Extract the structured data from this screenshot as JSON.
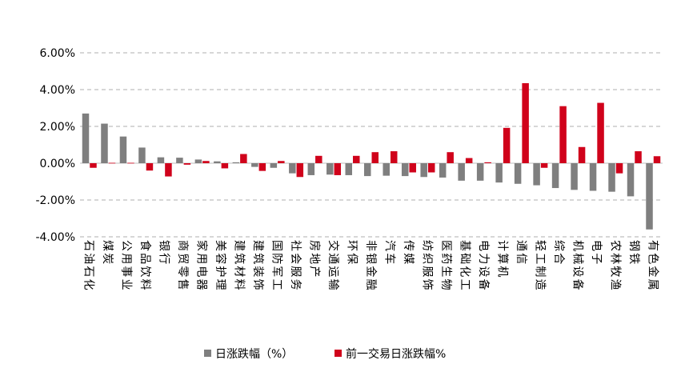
{
  "chart_data": {
    "type": "bar",
    "title": "",
    "xlabel": "",
    "ylabel": "",
    "ylim": [
      -4,
      6
    ],
    "yticks": [
      -4,
      -2,
      0,
      2,
      4,
      6
    ],
    "ytick_labels": [
      "-4.00%",
      "-2.00%",
      "0.00%",
      "2.00%",
      "4.00%",
      "6.00%"
    ],
    "grid": "horizontal dashed",
    "legend_position": "bottom",
    "categories": [
      "石油石化",
      "煤炭",
      "公用事业",
      "食品饮料",
      "银行",
      "商贸零售",
      "家用电器",
      "美容护理",
      "建筑材料",
      "建筑装饰",
      "国防军工",
      "社会服务",
      "房地产",
      "交通运输",
      "环保",
      "非银金融",
      "汽车",
      "传媒",
      "纺织服饰",
      "医药生物",
      "基础化工",
      "电力设备",
      "计算机",
      "通信",
      "轻工制造",
      "综合",
      "机械设备",
      "电子",
      "农林牧渔",
      "钢铁",
      "有色金属"
    ],
    "series": [
      {
        "name": "日涨跌幅（%）",
        "color": "#7f7f7f",
        "values": [
          2.7,
          2.15,
          1.45,
          0.85,
          0.32,
          0.3,
          0.2,
          0.1,
          0.05,
          -0.2,
          -0.25,
          -0.55,
          -0.65,
          -0.62,
          -0.65,
          -0.7,
          -0.68,
          -0.7,
          -0.75,
          -0.78,
          -0.95,
          -0.95,
          -1.05,
          -1.12,
          -1.2,
          -1.35,
          -1.45,
          -1.5,
          -1.55,
          -1.8,
          -3.6
        ]
      },
      {
        "name": "前一交易日涨跌幅%",
        "color": "#d0021b",
        "values": [
          -0.25,
          0.02,
          0.02,
          -0.4,
          -0.72,
          -0.08,
          0.12,
          -0.28,
          0.5,
          -0.42,
          0.12,
          -0.75,
          0.4,
          -0.65,
          0.4,
          0.6,
          0.65,
          -0.5,
          -0.5,
          0.6,
          0.28,
          0.05,
          1.92,
          4.35,
          -0.25,
          3.1,
          0.88,
          3.28,
          -0.55,
          0.65,
          0.38
        ]
      }
    ]
  }
}
